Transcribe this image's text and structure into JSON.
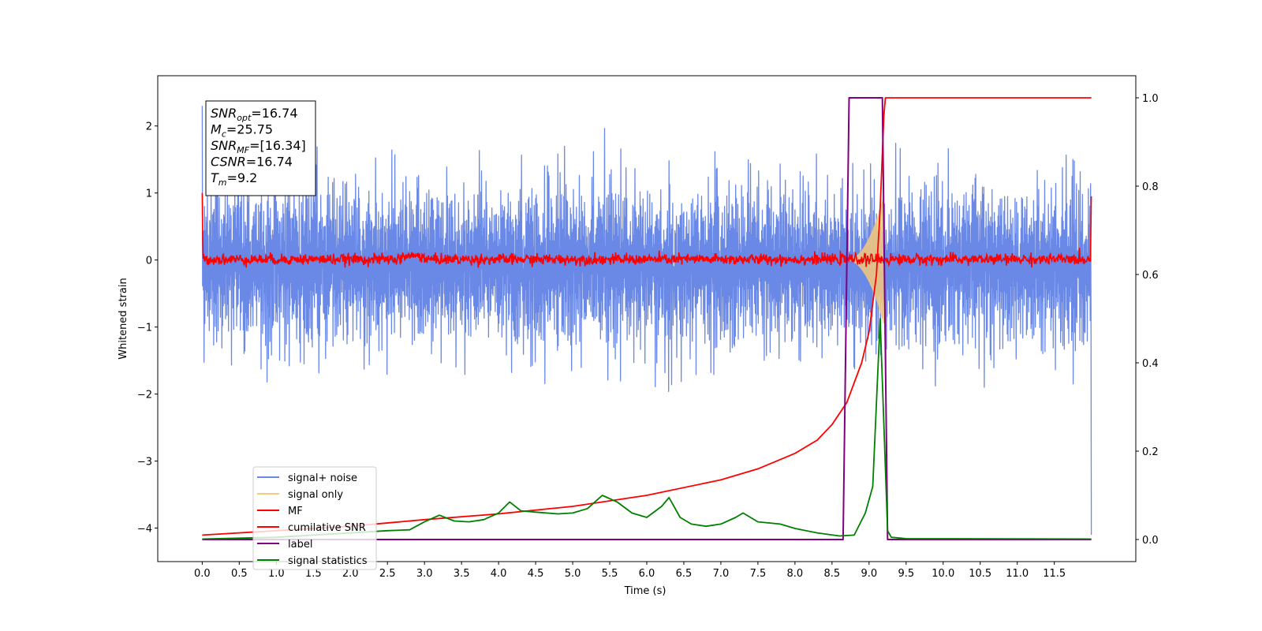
{
  "chart_data": {
    "type": "line",
    "xlabel": "Time (s)",
    "ylabel": "Whitened strain",
    "xlim": [
      -0.6,
      12.6
    ],
    "ylim": [
      -4.5,
      2.75
    ],
    "y2lim": [
      -0.05,
      1.05
    ],
    "x_ticks": [
      0.0,
      0.5,
      1.0,
      1.5,
      2.0,
      2.5,
      3.0,
      3.5,
      4.0,
      4.5,
      5.0,
      5.5,
      6.0,
      6.5,
      7.0,
      7.5,
      8.0,
      8.5,
      9.0,
      9.5,
      10.0,
      10.5,
      11.0,
      11.5
    ],
    "x_tick_labels": [
      "0.0",
      "0.5",
      "1.0",
      "1.5",
      "2.0",
      "2.5",
      "3.0",
      "3.5",
      "4.0",
      "4.5",
      "5.0",
      "5.5",
      "6.0",
      "6.5",
      "7.0",
      "7.5",
      "8.0",
      "8.5",
      "9.0",
      "9.5",
      "10.0",
      "10.5",
      "11.0",
      "11.5"
    ],
    "y_ticks": [
      2,
      1,
      0,
      -1,
      -2,
      -3,
      -4
    ],
    "y_tick_labels": [
      "2",
      "1",
      "0",
      "−1",
      "−2",
      "−3",
      "−4"
    ],
    "y2_ticks": [
      1.0,
      0.8,
      0.6,
      0.4,
      0.2,
      0.0
    ],
    "y2_tick_labels": [
      "1.0",
      "0.8",
      "0.6",
      "0.4",
      "0.2",
      "0.0"
    ],
    "annotation": {
      "lines": [
        {
          "base": "SNR",
          "sub": "opt",
          "rest": "=16.74"
        },
        {
          "base": "M",
          "sub": "c",
          "rest": "=25.75"
        },
        {
          "base": "SNR",
          "sub": "MF",
          "rest": "=[16.34]"
        },
        {
          "base": "CSNR",
          "sub": "",
          "rest": "=16.74"
        },
        {
          "base": "T",
          "sub": "m",
          "rest": "=9.2"
        }
      ]
    },
    "legend": {
      "position": "lower left",
      "entries": [
        {
          "label": "signal+ noise",
          "color": "#6a88e6"
        },
        {
          "label": "signal only",
          "color": "#f5c97a"
        },
        {
          "label": "MF",
          "color": "#ff0000"
        },
        {
          "label": "cumilative SNR",
          "color": "#ff0000"
        },
        {
          "label": "label",
          "color": "#800080"
        },
        {
          "label": "signal statistics",
          "color": "#008000"
        }
      ]
    },
    "series": [
      {
        "name": "signal+ noise",
        "axis": "left",
        "color": "#6a88e6",
        "style": "noise",
        "x_range": [
          0.0,
          12.0
        ],
        "typical_range": [
          -1.2,
          1.0
        ],
        "min": -2.0,
        "max": 2.3
      },
      {
        "name": "signal only",
        "axis": "left",
        "color": "#f5c97a",
        "style": "chirp",
        "x_range": [
          8.7,
          9.2
        ],
        "peak_amplitude": 0.9
      },
      {
        "name": "MF",
        "axis": "left",
        "color": "#ff0000",
        "style": "noise",
        "x_range": [
          0.0,
          12.0
        ],
        "typical_range": [
          -0.08,
          0.12
        ],
        "edge_values": [
          1.0,
          0.95
        ]
      },
      {
        "name": "cumilative SNR",
        "axis": "right",
        "color": "#ff0000",
        "x": [
          0.0,
          1.0,
          2.0,
          3.0,
          4.0,
          5.0,
          6.0,
          7.0,
          7.5,
          8.0,
          8.3,
          8.5,
          8.7,
          8.9,
          9.0,
          9.1,
          9.15,
          9.2,
          9.22,
          12.0
        ],
        "values": [
          0.01,
          0.02,
          0.03,
          0.045,
          0.058,
          0.075,
          0.1,
          0.135,
          0.16,
          0.195,
          0.225,
          0.26,
          0.31,
          0.4,
          0.47,
          0.6,
          0.75,
          0.96,
          1.0,
          1.0
        ]
      },
      {
        "name": "label",
        "axis": "right",
        "color": "#800080",
        "x": [
          0.0,
          8.65,
          8.73,
          9.18,
          9.25,
          12.0
        ],
        "values": [
          0.0,
          0.0,
          1.0,
          1.0,
          0.0,
          0.0
        ]
      },
      {
        "name": "signal statistics",
        "axis": "right",
        "color": "#008000",
        "x": [
          0.0,
          0.5,
          1.0,
          1.5,
          2.0,
          2.5,
          2.8,
          3.0,
          3.2,
          3.4,
          3.6,
          3.8,
          4.0,
          4.15,
          4.3,
          4.5,
          4.8,
          5.0,
          5.2,
          5.4,
          5.6,
          5.8,
          6.0,
          6.2,
          6.3,
          6.45,
          6.6,
          6.8,
          7.0,
          7.2,
          7.3,
          7.5,
          7.8,
          8.0,
          8.3,
          8.6,
          8.8,
          8.95,
          9.05,
          9.15,
          9.25,
          9.3,
          9.5,
          12.0
        ],
        "values": [
          0.001,
          0.003,
          0.005,
          0.01,
          0.015,
          0.02,
          0.022,
          0.04,
          0.055,
          0.042,
          0.04,
          0.045,
          0.06,
          0.085,
          0.065,
          0.062,
          0.058,
          0.06,
          0.07,
          0.1,
          0.085,
          0.06,
          0.05,
          0.075,
          0.095,
          0.05,
          0.035,
          0.03,
          0.035,
          0.05,
          0.06,
          0.04,
          0.035,
          0.025,
          0.015,
          0.008,
          0.01,
          0.06,
          0.12,
          0.5,
          0.02,
          0.005,
          0.002,
          0.001
        ]
      }
    ]
  }
}
